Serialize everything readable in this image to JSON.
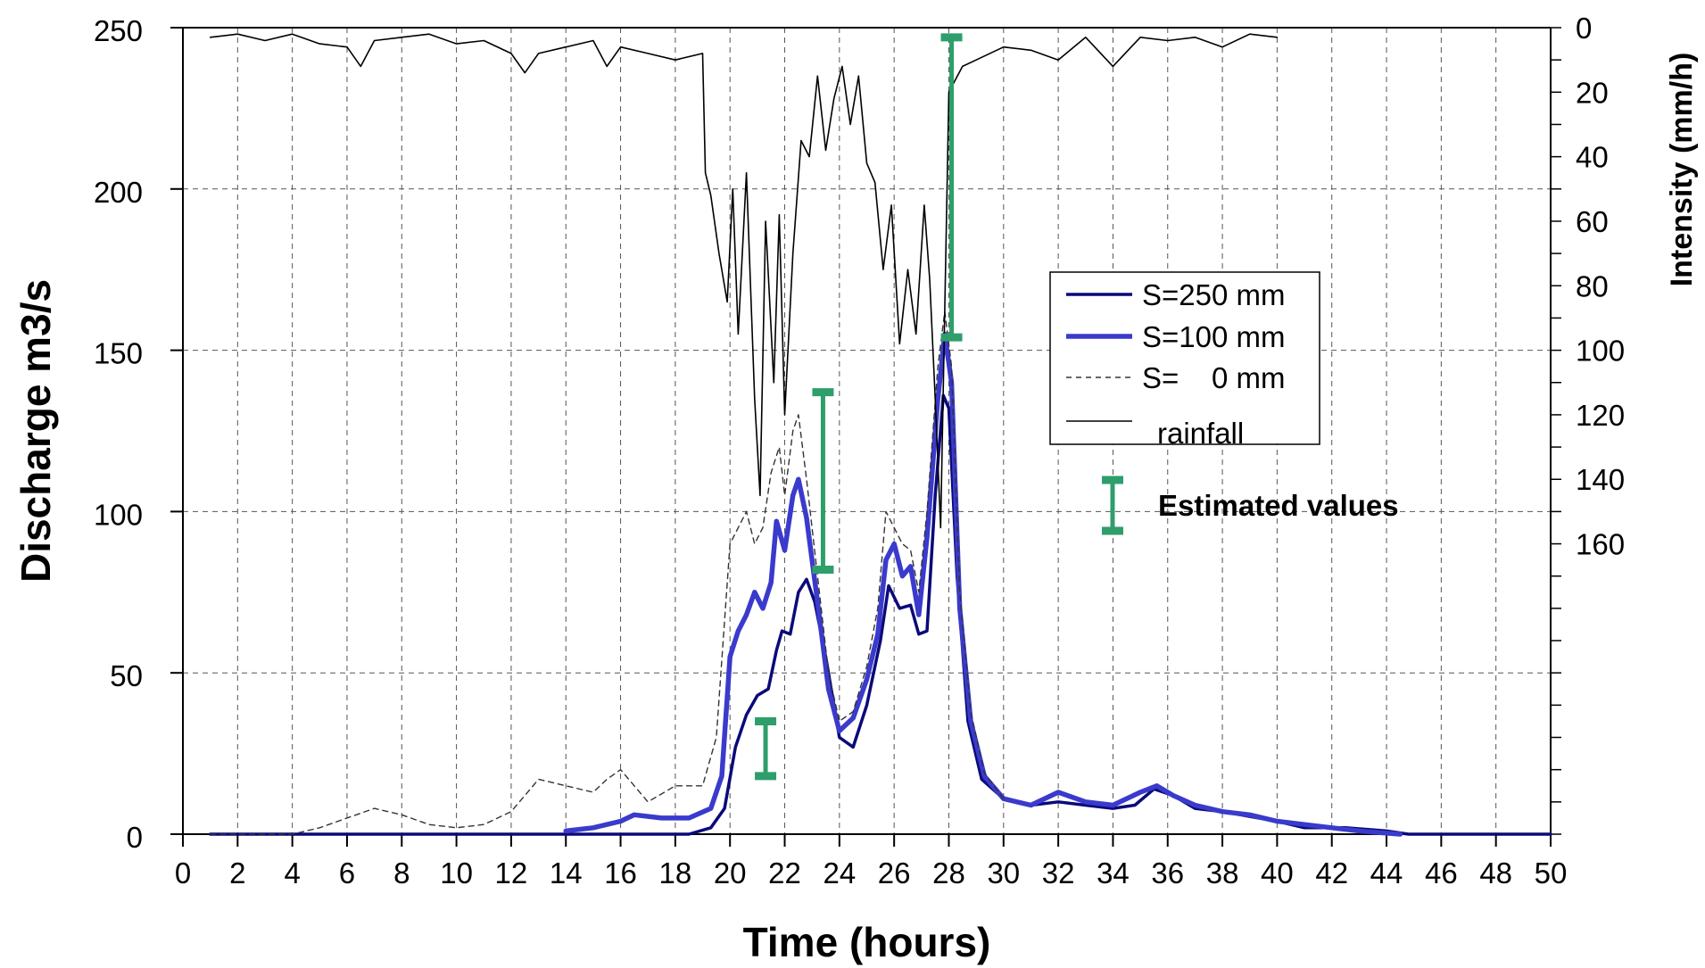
{
  "chart_data": {
    "type": "line",
    "xlabel": "Time (hours)",
    "ylabel": "Discharge m3/s",
    "y2label": "Intensity (mm/h)",
    "xlim": [
      0,
      50
    ],
    "ylim": [
      0,
      250
    ],
    "y2lim": [
      0,
      250
    ],
    "y2_inverted": true,
    "x_ticks": [
      0,
      2,
      4,
      6,
      8,
      10,
      12,
      14,
      16,
      18,
      20,
      22,
      24,
      26,
      28,
      30,
      32,
      34,
      36,
      38,
      40,
      42,
      44,
      46,
      48,
      50
    ],
    "y_ticks": [
      0,
      50,
      100,
      150,
      200,
      250
    ],
    "y2_ticks": [
      0,
      20,
      40,
      60,
      80,
      100,
      120,
      140,
      160
    ],
    "grid": true,
    "legend_position": "right, mid-height",
    "series": [
      {
        "name": "S=250 mm",
        "color": "#0a0a7a",
        "x": [
          1,
          14,
          18.5,
          19.3,
          19.8,
          20.2,
          20.6,
          21.0,
          21.4,
          21.7,
          21.9,
          22.2,
          22.5,
          22.8,
          23.1,
          23.5,
          24.0,
          24.5,
          25.0,
          25.5,
          25.8,
          26.2,
          26.6,
          26.9,
          27.2,
          27.5,
          27.8,
          28.0,
          28.3,
          28.7,
          29.2,
          30.0,
          31.0,
          32.0,
          33.0,
          34.0,
          34.8,
          35.5,
          36.2,
          37.0,
          38.0,
          40.0,
          41.0,
          42.5,
          44.0,
          44.8,
          50
        ],
        "y": [
          0,
          0,
          0,
          2,
          8,
          27,
          37,
          43,
          45,
          57,
          63,
          62,
          75,
          79,
          72,
          55,
          30,
          27,
          40,
          60,
          77,
          70,
          71,
          62,
          63,
          105,
          136,
          132,
          80,
          35,
          17,
          11,
          9,
          10,
          9,
          8,
          9,
          14,
          12,
          8,
          7,
          4,
          2,
          2,
          1,
          0,
          0
        ]
      },
      {
        "name": "S=100 mm",
        "color": "#3a3acd",
        "x": [
          14,
          15,
          16,
          16.5,
          17.5,
          18.5,
          19.3,
          19.7,
          20.0,
          20.3,
          20.6,
          20.9,
          21.2,
          21.5,
          21.7,
          22.0,
          22.3,
          22.5,
          22.8,
          23.2,
          23.6,
          24.0,
          24.5,
          25.0,
          25.4,
          25.7,
          26.0,
          26.3,
          26.6,
          26.9,
          27.2,
          27.6,
          27.85,
          28.1,
          28.4,
          28.8,
          29.3,
          30.0,
          31.0,
          32.0,
          33.0,
          34.0,
          35.0,
          35.6,
          36.2,
          37.0,
          38.0,
          39.0,
          40.0,
          41.0,
          42.0,
          43.0,
          44.5
        ],
        "y": [
          1,
          2,
          4,
          6,
          5,
          5,
          8,
          18,
          55,
          63,
          68,
          75,
          70,
          78,
          97,
          88,
          105,
          110,
          98,
          72,
          45,
          32,
          36,
          48,
          62,
          85,
          90,
          80,
          83,
          68,
          92,
          135,
          155,
          140,
          70,
          35,
          18,
          11,
          9,
          13,
          10,
          9,
          13,
          15,
          12,
          9,
          7,
          6,
          4,
          3,
          2,
          1,
          0
        ]
      },
      {
        "name": "S=    0 mm",
        "color": "#333333",
        "dash": "6,5",
        "x": [
          1,
          2,
          3,
          4,
          5,
          6,
          7,
          8,
          9,
          10,
          11,
          12,
          12.5,
          13,
          13.5,
          14,
          15,
          15.5,
          16,
          16.5,
          17,
          18,
          19,
          19.5,
          20,
          20.3,
          20.6,
          20.9,
          21.2,
          21.5,
          21.8,
          22.0,
          22.3,
          22.5,
          22.8,
          23.2,
          23.6,
          24.0,
          24.5,
          25.0,
          25.4,
          25.7,
          26.0,
          26.3,
          26.6,
          26.9,
          27.2,
          27.6,
          27.85,
          28.1,
          28.4,
          28.8,
          29.3,
          30.0
        ],
        "y": [
          0,
          0,
          0,
          0,
          2,
          5,
          8,
          6,
          3,
          2,
          3,
          7,
          12,
          17,
          16,
          15,
          13,
          17,
          20,
          15,
          10,
          15,
          15,
          30,
          90,
          95,
          100,
          90,
          95,
          112,
          120,
          105,
          125,
          130,
          110,
          80,
          50,
          35,
          38,
          52,
          70,
          100,
          95,
          90,
          88,
          75,
          100,
          145,
          162,
          145,
          75,
          38,
          19,
          11
        ]
      },
      {
        "name": "rainfall",
        "color": "#000000",
        "axis": "y2",
        "x": [
          1,
          2,
          3,
          4,
          5,
          6,
          6.5,
          7,
          8,
          9,
          10,
          11,
          12,
          12.5,
          13,
          14,
          15,
          15.5,
          16,
          17,
          18,
          19,
          19.1,
          19.3,
          19.6,
          19.9,
          20.1,
          20.3,
          20.6,
          20.9,
          21.1,
          21.3,
          21.6,
          21.8,
          22.0,
          22.3,
          22.6,
          22.9,
          23.2,
          23.5,
          23.8,
          24.1,
          24.4,
          24.7,
          25.0,
          25.3,
          25.6,
          25.9,
          26.2,
          26.5,
          26.8,
          27.1,
          27.3,
          27.5,
          27.7,
          28.0,
          28.5,
          29,
          30,
          31,
          32,
          33,
          34,
          35,
          36,
          37,
          38,
          39,
          40
        ],
        "y": [
          3,
          2,
          4,
          2,
          5,
          6,
          12,
          4,
          3,
          2,
          5,
          4,
          8,
          14,
          8,
          6,
          4,
          12,
          6,
          8,
          10,
          8,
          45,
          52,
          70,
          85,
          50,
          95,
          45,
          115,
          145,
          60,
          110,
          58,
          120,
          70,
          35,
          40,
          15,
          38,
          22,
          12,
          30,
          15,
          42,
          48,
          75,
          55,
          98,
          75,
          95,
          55,
          78,
          115,
          155,
          20,
          12,
          10,
          6,
          7,
          10,
          3,
          12,
          3,
          4,
          3,
          6,
          2,
          3
        ]
      }
    ],
    "error_bars": {
      "name": "Estimated values",
      "color": "#2e9e6a",
      "items": [
        {
          "x": 21.3,
          "low": 18,
          "high": 35
        },
        {
          "x": 23.4,
          "low": 82,
          "high": 137
        },
        {
          "x": 28.1,
          "low": 154,
          "high": 247
        }
      ]
    }
  },
  "legend": {
    "items": [
      {
        "label": "S=250 mm"
      },
      {
        "label": "S=100 mm"
      },
      {
        "label": "S=    0 mm"
      },
      {
        "label": "rainfall"
      }
    ],
    "estimated_label": "Estimated values"
  }
}
